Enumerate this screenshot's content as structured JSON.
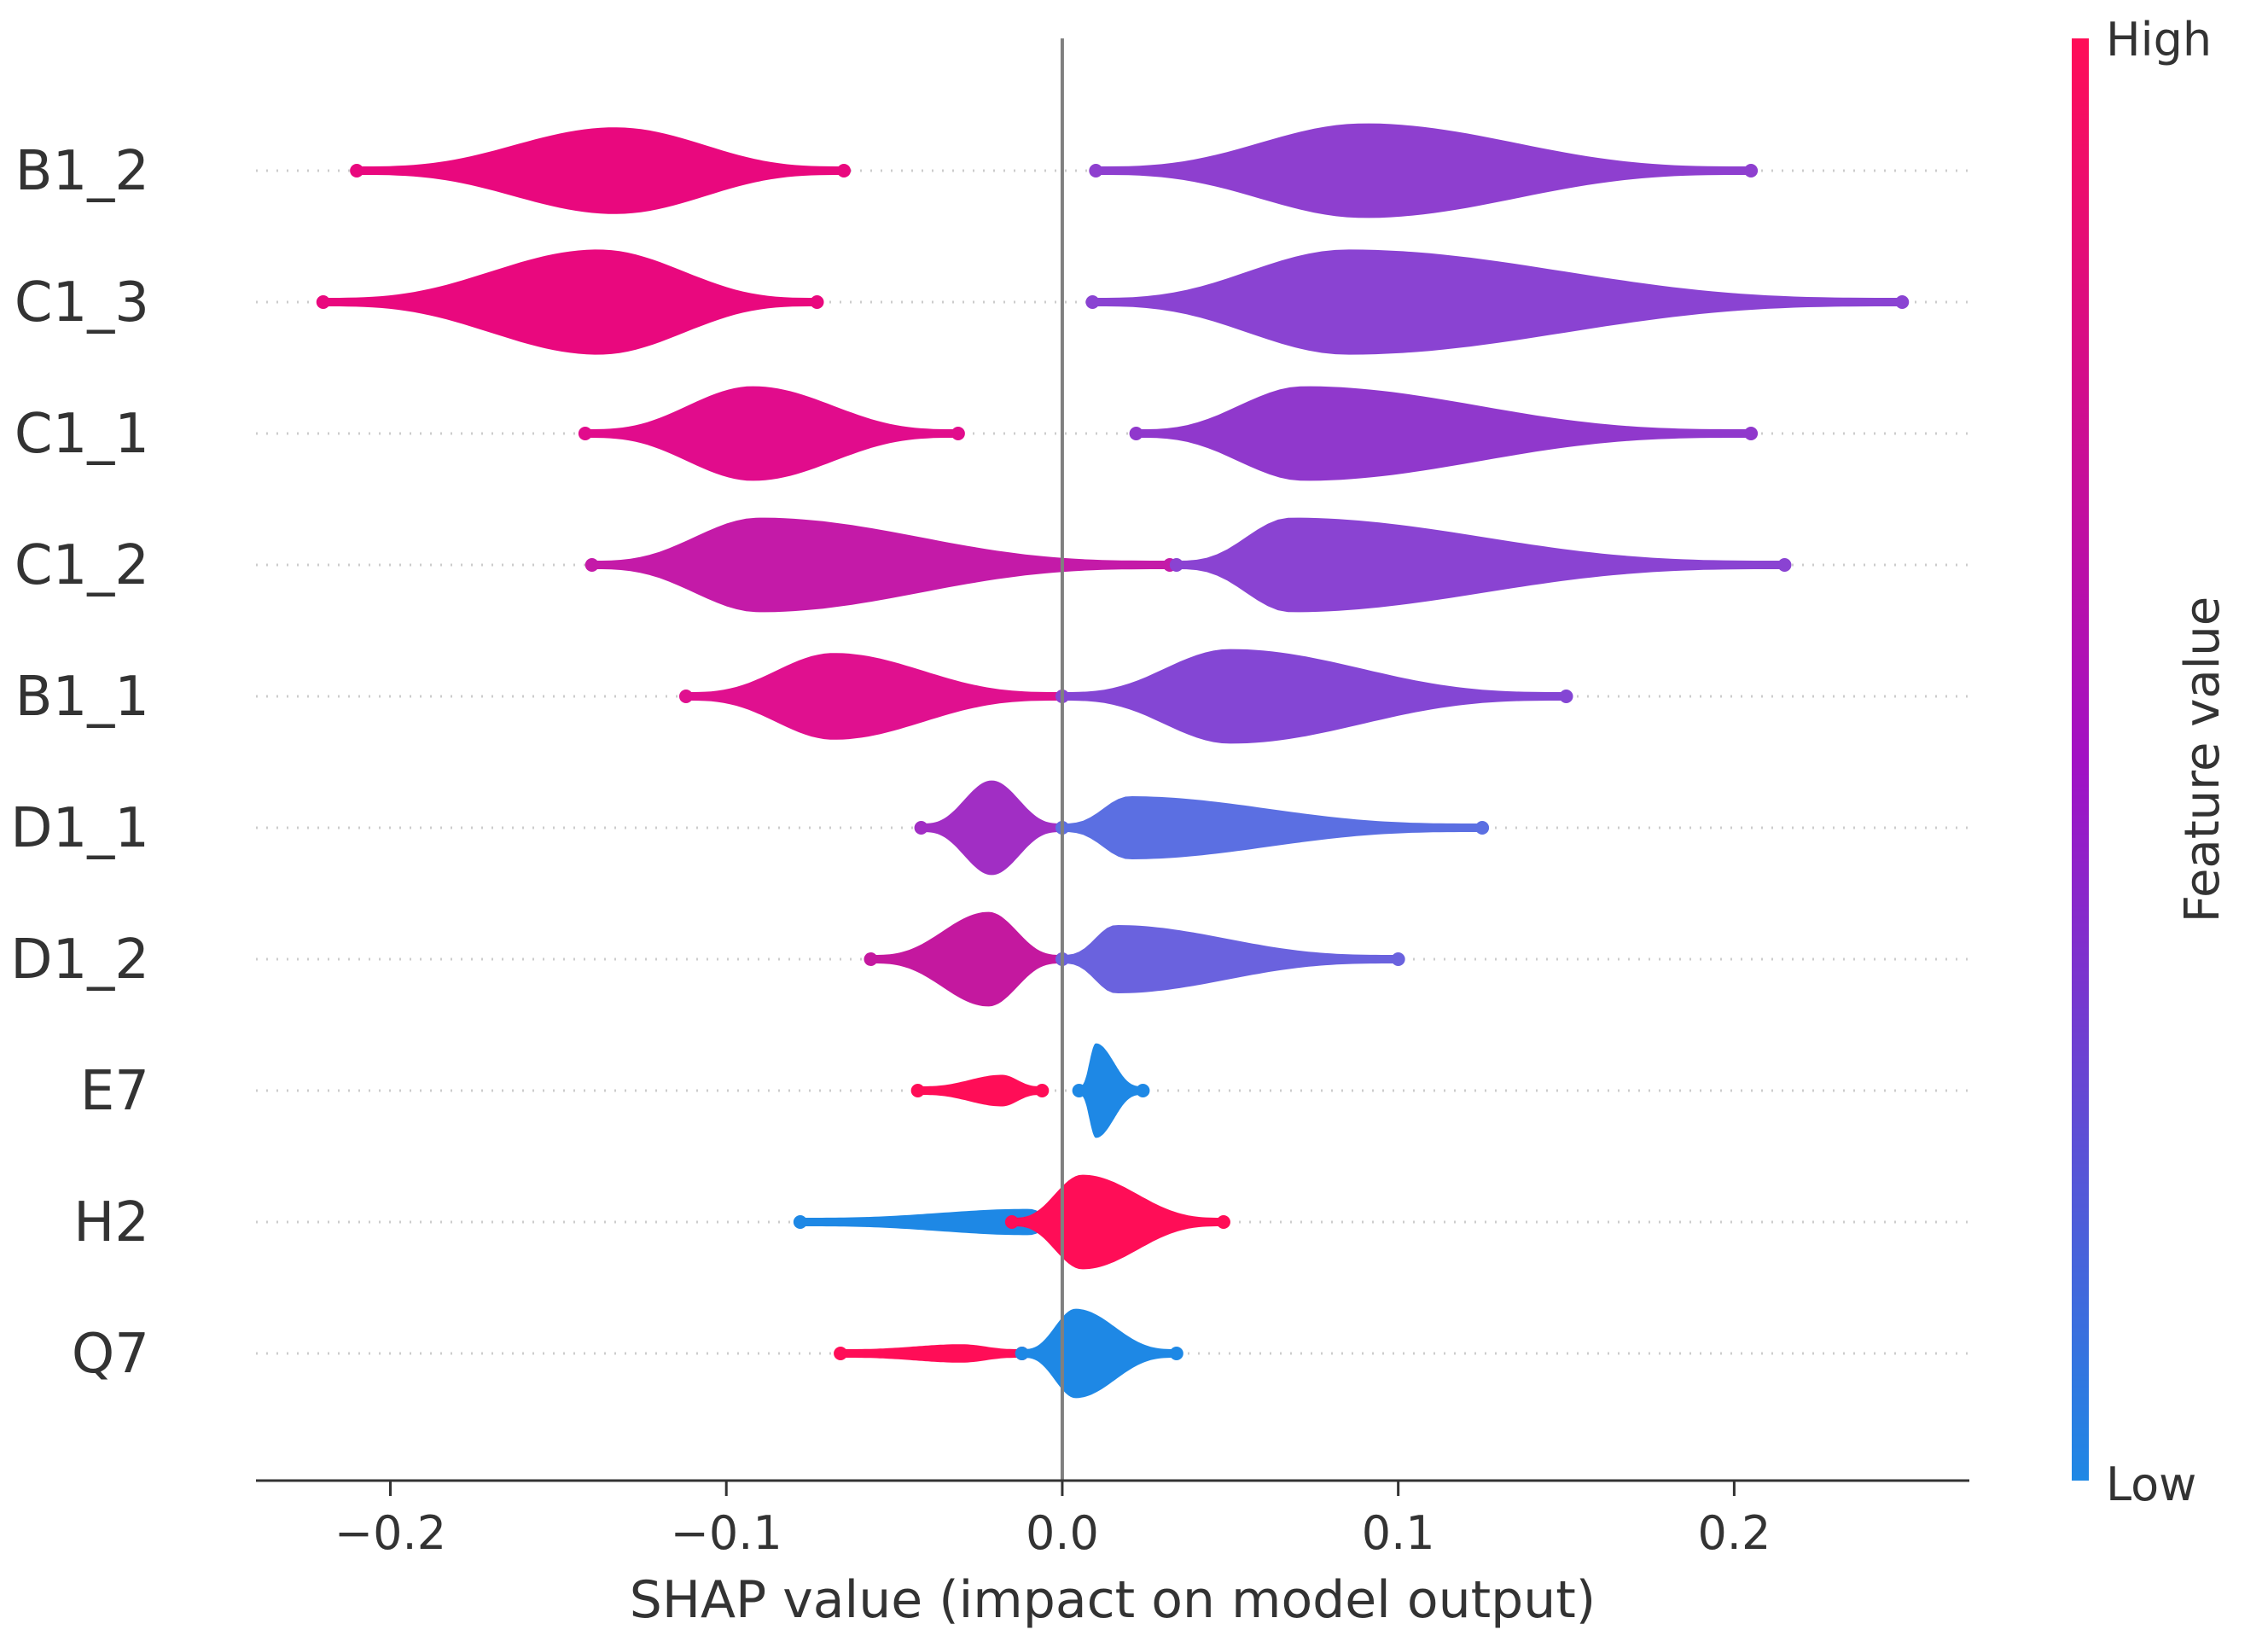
{
  "chart_data": {
    "type": "violin",
    "title": "",
    "xlabel": "SHAP value (impact on model output)",
    "xlim": [
      -0.24,
      0.27
    ],
    "xticks": [
      -0.2,
      -0.1,
      0.0,
      0.1,
      0.2
    ],
    "xtick_labels": [
      "−0.2",
      "−0.1",
      "0.0",
      "0.1",
      "0.2"
    ],
    "colorbar": {
      "label": "Feature value",
      "high_label": "High",
      "low_label": "Low",
      "high_color": "#ff0d57",
      "mid_color": "#a210c4",
      "low_color": "#1e88e5"
    },
    "features": [
      {
        "name": "B1_2",
        "clusters": [
          {
            "min": -0.21,
            "max": -0.065,
            "peak": -0.133,
            "height": 0.33,
            "color": "#e9087e"
          },
          {
            "min": 0.01,
            "max": 0.205,
            "peak": 0.09,
            "height": 0.36,
            "color": "#8e3fcf"
          }
        ]
      },
      {
        "name": "C1_3",
        "clusters": [
          {
            "min": -0.22,
            "max": -0.073,
            "peak": -0.138,
            "height": 0.4,
            "color": "#e9087e"
          },
          {
            "min": 0.009,
            "max": 0.25,
            "peak": 0.085,
            "height": 0.4,
            "color": "#8a43d2"
          }
        ]
      },
      {
        "name": "C1_1",
        "clusters": [
          {
            "min": -0.142,
            "max": -0.031,
            "peak": -0.092,
            "height": 0.36,
            "color": "#e10c8c"
          },
          {
            "min": 0.022,
            "max": 0.205,
            "peak": 0.072,
            "height": 0.36,
            "color": "#9038cc"
          }
        ]
      },
      {
        "name": "C1_2",
        "clusters": [
          {
            "min": -0.14,
            "max": 0.032,
            "peak": -0.09,
            "height": 0.36,
            "color": "#c41aa8"
          },
          {
            "min": 0.034,
            "max": 0.215,
            "peak": 0.068,
            "height": 0.36,
            "color": "#8a43d2"
          }
        ]
      },
      {
        "name": "B1_1",
        "clusters": [
          {
            "min": -0.112,
            "max": 0.0,
            "peak": -0.068,
            "height": 0.33,
            "color": "#e0108f"
          },
          {
            "min": 0.0,
            "max": 0.15,
            "peak": 0.05,
            "height": 0.36,
            "color": "#8446d4"
          }
        ]
      },
      {
        "name": "D1_1",
        "clusters": [
          {
            "min": -0.042,
            "max": 0.0,
            "peak": -0.021,
            "height": 0.36,
            "color": "#a12ec4"
          },
          {
            "min": 0.0,
            "max": 0.125,
            "peak": 0.02,
            "height": 0.24,
            "color": "#5b6fe2"
          }
        ]
      },
      {
        "name": "D1_2",
        "clusters": [
          {
            "min": -0.057,
            "max": 0.0,
            "peak": -0.022,
            "height": 0.36,
            "color": "#c4189f"
          },
          {
            "min": 0.0,
            "max": 0.1,
            "peak": 0.016,
            "height": 0.26,
            "color": "#6a62de"
          }
        ]
      },
      {
        "name": "E7",
        "clusters": [
          {
            "min": -0.043,
            "max": -0.006,
            "peak": -0.018,
            "height": 0.12,
            "color": "#ff0d57"
          },
          {
            "min": 0.005,
            "max": 0.024,
            "peak": 0.01,
            "height": 0.36,
            "color": "#1e88e5"
          }
        ]
      },
      {
        "name": "H2",
        "clusters": [
          {
            "min": -0.078,
            "max": 0.0,
            "peak": -0.01,
            "height": 0.1,
            "color": "#1e88e5"
          },
          {
            "min": -0.015,
            "max": 0.048,
            "peak": 0.006,
            "height": 0.36,
            "color": "#ff0d57"
          }
        ]
      },
      {
        "name": "Q7",
        "clusters": [
          {
            "min": -0.066,
            "max": -0.012,
            "peak": -0.03,
            "height": 0.07,
            "color": "#ff0d57"
          },
          {
            "min": -0.012,
            "max": 0.034,
            "peak": 0.004,
            "height": 0.34,
            "color": "#1e88e5"
          }
        ]
      }
    ]
  }
}
